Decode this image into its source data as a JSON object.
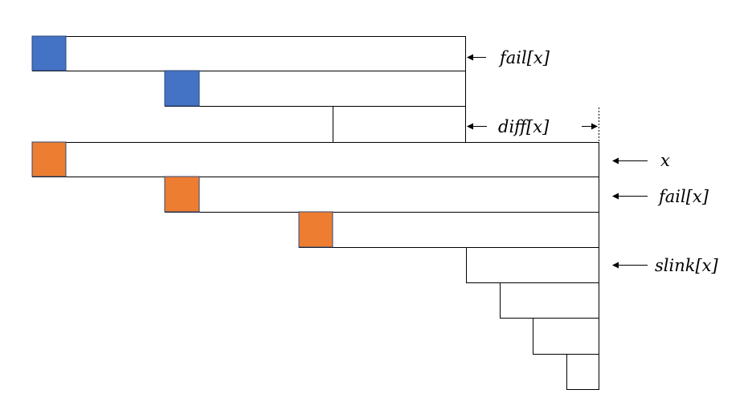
{
  "labels": {
    "fail_top": "fail[x]",
    "diff": "diff[x]",
    "x": "x",
    "fail_bottom": "fail[x]",
    "slink": "slink[x]"
  },
  "colors": {
    "blue_marker": "#4472C4",
    "orange_marker": "#ED7D31",
    "marker_border": "#2F4A7A",
    "stroke": "#000000"
  }
}
